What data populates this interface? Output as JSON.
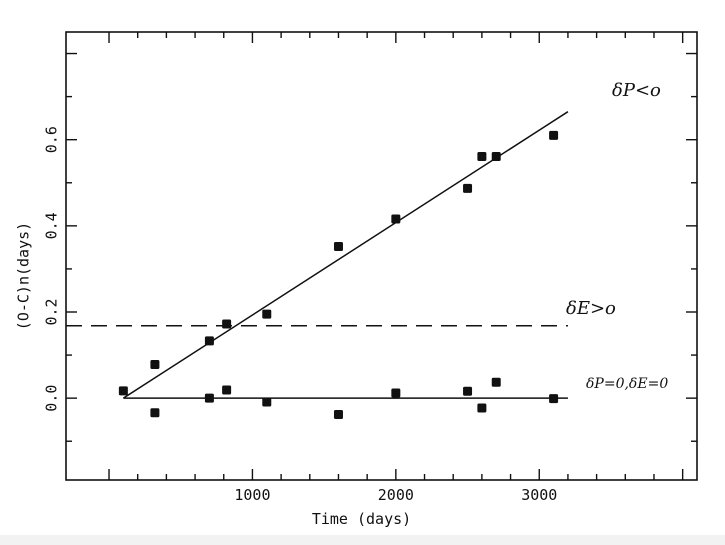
{
  "chart_data": {
    "type": "scatter",
    "xlabel": "Time (days)",
    "ylabel": "(O-C)n(days)",
    "xlim": [
      -300,
      4100
    ],
    "ylim": [
      -0.19,
      0.85
    ],
    "x_ticks": [
      1000,
      2000,
      3000
    ],
    "x_tick_labels": [
      "1000",
      "2000",
      "3000"
    ],
    "y_ticks": [
      0.0,
      0.2,
      0.4,
      0.6
    ],
    "y_tick_labels": [
      "0.0",
      "0.2",
      "0.4",
      "0.6"
    ],
    "grid": false,
    "series": [
      {
        "marker": "filled-square",
        "points": [
          [
            100,
            0.017
          ],
          [
            320,
            0.078
          ],
          [
            700,
            0.133
          ],
          [
            820,
            0.172
          ],
          [
            1100,
            0.195
          ],
          [
            1600,
            0.352
          ],
          [
            2000,
            0.416
          ],
          [
            2500,
            0.487
          ],
          [
            2600,
            0.561
          ],
          [
            2700,
            0.561
          ],
          [
            3100,
            0.61
          ]
        ]
      },
      {
        "marker": "filled-square",
        "points": [
          [
            320,
            -0.034
          ],
          [
            700,
            0.0
          ],
          [
            820,
            0.019
          ],
          [
            1100,
            -0.009
          ],
          [
            1600,
            -0.038
          ],
          [
            2000,
            0.012
          ],
          [
            2500,
            0.016
          ],
          [
            2600,
            -0.023
          ],
          [
            2700,
            0.037
          ],
          [
            3100,
            -0.001
          ]
        ]
      }
    ],
    "lines": [
      {
        "style": "solid",
        "from": [
          100,
          0.0
        ],
        "to": [
          3200,
          0.665
        ],
        "label": "δP<o"
      },
      {
        "style": "dashed",
        "from": [
          -300,
          0.168
        ],
        "to": [
          3200,
          0.168
        ],
        "label": "δE>o"
      },
      {
        "style": "solid",
        "from": [
          100,
          0.0
        ],
        "to": [
          3200,
          0.0
        ],
        "label": "δP=0,δE=0"
      }
    ]
  }
}
